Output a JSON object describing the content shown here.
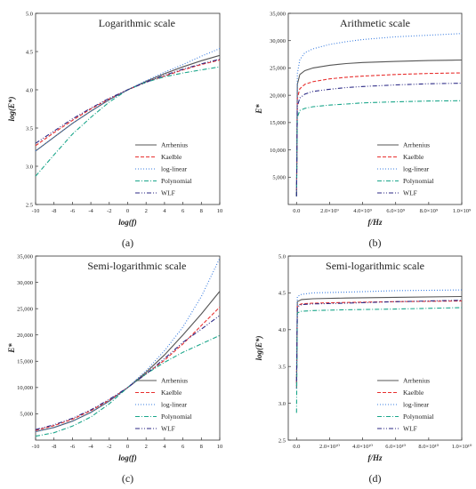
{
  "chart_data": [
    {
      "type": "line",
      "panel_label": "(a)",
      "title": "Logarithmic scale",
      "xlabel": "log(f)",
      "ylabel": "log(E*)",
      "xlim": [
        -10,
        10
      ],
      "ylim": [
        2.5,
        5.0
      ],
      "x_ticks": [
        "-10",
        "-8",
        "-6",
        "-4",
        "-2",
        "0",
        "2",
        "4",
        "6",
        "8",
        "10"
      ],
      "y_ticks": [
        "2.5",
        "3.0",
        "3.5",
        "4.0",
        "4.5",
        "5.0"
      ],
      "legend_position": "lower-right",
      "x": [
        -10,
        -8,
        -6,
        -4,
        -2,
        0,
        2,
        4,
        6,
        8,
        10
      ],
      "series": [
        {
          "name": "Arrhenius",
          "color": "#555555",
          "dash": "",
          "values": [
            3.2,
            3.38,
            3.56,
            3.72,
            3.87,
            4.0,
            4.11,
            4.21,
            4.3,
            4.38,
            4.45
          ]
        },
        {
          "name": "Kaelble",
          "color": "#e8302f",
          "dash": "4,2",
          "values": [
            3.27,
            3.44,
            3.6,
            3.75,
            3.88,
            4.0,
            4.1,
            4.18,
            4.26,
            4.33,
            4.39
          ]
        },
        {
          "name": "log-linear",
          "color": "#3a7de0",
          "dash": "1,2",
          "values": [
            3.2,
            3.38,
            3.56,
            3.72,
            3.87,
            4.0,
            4.12,
            4.23,
            4.33,
            4.44,
            4.54
          ]
        },
        {
          "name": "Polynomial",
          "color": "#1aa68a",
          "dash": "5,2,1,2",
          "values": [
            2.87,
            3.15,
            3.42,
            3.64,
            3.84,
            4.0,
            4.1,
            4.17,
            4.22,
            4.26,
            4.3
          ]
        },
        {
          "name": "WLF",
          "color": "#2c2a86",
          "dash": "5,2,1,2,1,2",
          "values": [
            3.3,
            3.46,
            3.62,
            3.76,
            3.89,
            4.0,
            4.1,
            4.19,
            4.27,
            4.34,
            4.4
          ]
        }
      ]
    },
    {
      "type": "line",
      "panel_label": "(b)",
      "title": "Arithmetic scale",
      "xlabel": "f/Hz",
      "ylabel": "E*",
      "xlim": [
        -0.5,
        10
      ],
      "ylim": [
        0,
        35000
      ],
      "x_ticks": [
        "0.0",
        "2.0×10⁹",
        "4.0×10⁹",
        "6.0×10⁹",
        "8.0×10⁹",
        "1.0×10⁹"
      ],
      "x_tick_values": [
        0,
        2,
        4,
        6,
        8,
        10
      ],
      "y_ticks": [
        "5,000",
        "10,000",
        "15,000",
        "20,000",
        "25,000",
        "30,000",
        "35,000"
      ],
      "y_tick_values": [
        5000,
        10000,
        15000,
        20000,
        25000,
        30000,
        35000
      ],
      "legend_position": "lower-right",
      "x": [
        0,
        0.05,
        0.2,
        0.5,
        1,
        2,
        3,
        4,
        6,
        8,
        10
      ],
      "series": [
        {
          "name": "Arrhenius",
          "color": "#555555",
          "dash": "",
          "values": [
            1500,
            22000,
            23800,
            24500,
            25000,
            25500,
            25800,
            26000,
            26200,
            26350,
            26450
          ]
        },
        {
          "name": "Kaelble",
          "color": "#e8302f",
          "dash": "4,2",
          "values": [
            1500,
            19500,
            21200,
            22000,
            22500,
            23000,
            23300,
            23500,
            23800,
            24000,
            24100
          ]
        },
        {
          "name": "log-linear",
          "color": "#3a7de0",
          "dash": "1,2",
          "values": [
            1500,
            24000,
            26500,
            27800,
            28500,
            29300,
            29800,
            30200,
            30700,
            31000,
            31300
          ]
        },
        {
          "name": "Polynomial",
          "color": "#1aa68a",
          "dash": "5,2,1,2",
          "values": [
            1500,
            16000,
            17200,
            17600,
            17900,
            18200,
            18400,
            18600,
            18800,
            18950,
            19000
          ]
        },
        {
          "name": "WLF",
          "color": "#2c2a86",
          "dash": "5,2,1,2,1,2",
          "values": [
            1500,
            18000,
            19500,
            20200,
            20700,
            21100,
            21400,
            21600,
            21900,
            22100,
            22200
          ]
        }
      ]
    },
    {
      "type": "line",
      "panel_label": "(c)",
      "title": "Semi-logarithmic scale",
      "xlabel": "log(f)",
      "ylabel": "E*",
      "xlim": [
        -10,
        10
      ],
      "ylim": [
        0,
        35000
      ],
      "x_ticks": [
        "-10",
        "-8",
        "-6",
        "-4",
        "-2",
        "0",
        "2",
        "4",
        "6",
        "8",
        "10"
      ],
      "y_ticks": [
        "5,000",
        "10,000",
        "15,000",
        "20,000",
        "25,000",
        "30,000",
        "35,000"
      ],
      "y_tick_values": [
        5000,
        10000,
        15000,
        20000,
        25000,
        30000,
        35000
      ],
      "legend_position": "lower-right",
      "x": [
        -10,
        -8,
        -6,
        -4,
        -2,
        0,
        2,
        4,
        6,
        8,
        10
      ],
      "series": [
        {
          "name": "Arrhenius",
          "color": "#555555",
          "dash": "",
          "values": [
            1600,
            2400,
            3600,
            5250,
            7400,
            10000,
            12900,
            16200,
            20000,
            24000,
            28300
          ]
        },
        {
          "name": "Kaelble",
          "color": "#e8302f",
          "dash": "4,2",
          "values": [
            1850,
            2750,
            3950,
            5600,
            7600,
            10000,
            12600,
            15200,
            18300,
            21800,
            25300
          ]
        },
        {
          "name": "log-linear",
          "color": "#3a7de0",
          "dash": "1,2",
          "values": [
            1600,
            2400,
            3600,
            5250,
            7400,
            10000,
            13200,
            17000,
            21500,
            27300,
            34600
          ]
        },
        {
          "name": "Polynomial",
          "color": "#1aa68a",
          "dash": "5,2,1,2",
          "values": [
            750,
            1400,
            2650,
            4400,
            6900,
            10000,
            12600,
            14800,
            16700,
            18300,
            19900
          ]
        },
        {
          "name": "WLF",
          "color": "#2c2a86",
          "dash": "5,2,1,2,1,2",
          "values": [
            2000,
            2900,
            4150,
            5750,
            7750,
            10000,
            12600,
            15500,
            18600,
            21100,
            23700
          ]
        }
      ]
    },
    {
      "type": "line",
      "panel_label": "(d)",
      "title": "Semi-logarithmic scale",
      "xlabel": "f/Hz",
      "ylabel": "log(E*)",
      "xlim": [
        -0.5,
        10
      ],
      "ylim": [
        2.5,
        5.0
      ],
      "x_ticks": [
        "0.0",
        "2.0×10¹⁰",
        "4.0×10¹⁰",
        "6.0×10¹⁰",
        "8.0×10¹⁰",
        "1.0×10¹⁰"
      ],
      "x_tick_values": [
        0,
        2,
        4,
        6,
        8,
        10
      ],
      "y_ticks": [
        "2.5",
        "3.0",
        "3.5",
        "4.0",
        "4.5",
        "5.0"
      ],
      "legend_position": "lower-right",
      "x": [
        0,
        0.05,
        0.3,
        1,
        3,
        6,
        10
      ],
      "series": [
        {
          "name": "Arrhenius",
          "color": "#555555",
          "dash": "",
          "values": [
            3.2,
            4.38,
            4.41,
            4.42,
            4.43,
            4.44,
            4.45
          ]
        },
        {
          "name": "Kaelble",
          "color": "#e8302f",
          "dash": "4,2",
          "values": [
            3.27,
            4.33,
            4.35,
            4.36,
            4.37,
            4.38,
            4.39
          ]
        },
        {
          "name": "log-linear",
          "color": "#3a7de0",
          "dash": "1,2",
          "values": [
            3.2,
            4.45,
            4.48,
            4.5,
            4.51,
            4.53,
            4.54
          ]
        },
        {
          "name": "Polynomial",
          "color": "#1aa68a",
          "dash": "5,2,1,2",
          "values": [
            2.87,
            4.23,
            4.25,
            4.26,
            4.27,
            4.28,
            4.3
          ]
        },
        {
          "name": "WLF",
          "color": "#2c2a86",
          "dash": "5,2,1,2,1,2",
          "values": [
            3.3,
            4.31,
            4.34,
            4.35,
            4.36,
            4.38,
            4.4
          ]
        }
      ]
    }
  ]
}
